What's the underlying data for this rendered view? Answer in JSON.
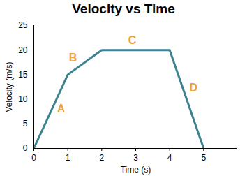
{
  "chart_data": {
    "type": "line",
    "title": "Velocity vs Time",
    "x_label": "Time (s)",
    "y_label": "Velocity (m/s)",
    "x": [
      0,
      1,
      2,
      4,
      5
    ],
    "values": [
      0,
      15,
      20,
      20,
      0
    ],
    "color": "#3d8290",
    "xlim": [
      0,
      6
    ],
    "xticks": [
      0,
      1,
      2,
      3,
      4,
      5
    ],
    "ylim": [
      0,
      25
    ],
    "yticks": [
      0,
      5,
      10,
      15,
      20,
      25
    ],
    "grid": false,
    "annotations": [
      {
        "text": "A",
        "x": 0.8,
        "y": 8,
        "color": "#e8a33d"
      },
      {
        "text": "B",
        "x": 1.15,
        "y": 18.4,
        "color": "#e8a33d"
      },
      {
        "text": "C",
        "x": 2.9,
        "y": 22,
        "color": "#e8a33d"
      },
      {
        "text": "D",
        "x": 4.7,
        "y": 12.3,
        "color": "#e8a33d"
      }
    ]
  }
}
